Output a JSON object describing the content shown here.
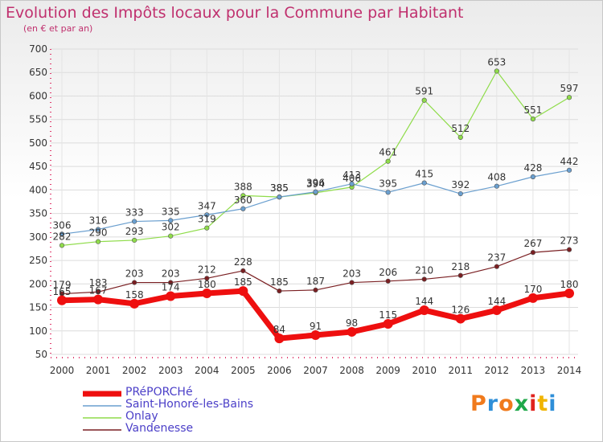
{
  "header": {
    "title": "Evolution des Impôts locaux pour la Commune par Habitant",
    "subtitle": "(en € et par an)"
  },
  "logo": {
    "text": "Proxiti",
    "colors": [
      "#f07a1c",
      "#2f8fd8",
      "#f07a1c",
      "#1fa84a",
      "#e0231e",
      "#f0b400",
      "#2f8fd8"
    ]
  },
  "chart_data": {
    "type": "line",
    "x": [
      2000,
      2001,
      2002,
      2003,
      2004,
      2005,
      2006,
      2007,
      2008,
      2009,
      2010,
      2011,
      2012,
      2013,
      2014
    ],
    "ylim": [
      50,
      700
    ],
    "yticks": [
      50,
      100,
      150,
      200,
      250,
      300,
      350,
      400,
      450,
      500,
      550,
      600,
      650,
      700
    ],
    "grid": true,
    "legend": "bottom-left",
    "series": [
      {
        "name": "Vandenesse",
        "color": "#7a1f22",
        "width": 1.2,
        "marker": 2.8,
        "values": [
          179,
          183,
          203,
          203,
          212,
          228,
          185,
          187,
          203,
          206,
          210,
          218,
          237,
          267,
          273
        ],
        "labels": [
          179,
          183,
          203,
          203,
          212,
          228,
          185,
          187,
          203,
          206,
          210,
          218,
          237,
          267,
          273
        ]
      },
      {
        "name": "Onlay",
        "color": "#8fdc4a",
        "width": 1.2,
        "marker": 2.8,
        "values": [
          282,
          290,
          293,
          302,
          319,
          388,
          385,
          394,
          406,
          461,
          591,
          512,
          653,
          551,
          597
        ],
        "labels": [
          282,
          290,
          293,
          302,
          319,
          388,
          385,
          394,
          406,
          461,
          591,
          512,
          653,
          551,
          597
        ]
      },
      {
        "name": "Saint-Honoré-les-Bains",
        "color": "#6a9fcf",
        "width": 1.2,
        "marker": 2.8,
        "values": [
          306,
          316,
          333,
          335,
          347,
          360,
          385,
          396,
          413,
          395,
          415,
          392,
          408,
          428,
          442
        ],
        "labels": [
          306,
          316,
          333,
          335,
          347,
          360,
          385,
          396,
          413,
          395,
          415,
          392,
          408,
          428,
          442
        ]
      },
      {
        "name": "PRéPORCHé",
        "color": "#ee0f0f",
        "width": 7,
        "marker": 6,
        "values": [
          165,
          167,
          158,
          174,
          180,
          185,
          84,
          91,
          98,
          115,
          144,
          126,
          144,
          170,
          180
        ],
        "labels": [
          165,
          167,
          158,
          174,
          180,
          185,
          84,
          91,
          98,
          115,
          144,
          126,
          144,
          170,
          180
        ]
      }
    ]
  },
  "legend_items": [
    {
      "label": "PRéPORCHé",
      "color": "#ee0f0f"
    },
    {
      "label": "Saint-Honoré-les-Bains",
      "color": "#6a9fcf"
    },
    {
      "label": "Onlay",
      "color": "#8fdc4a"
    },
    {
      "label": "Vandenesse",
      "color": "#7a1f22"
    }
  ]
}
